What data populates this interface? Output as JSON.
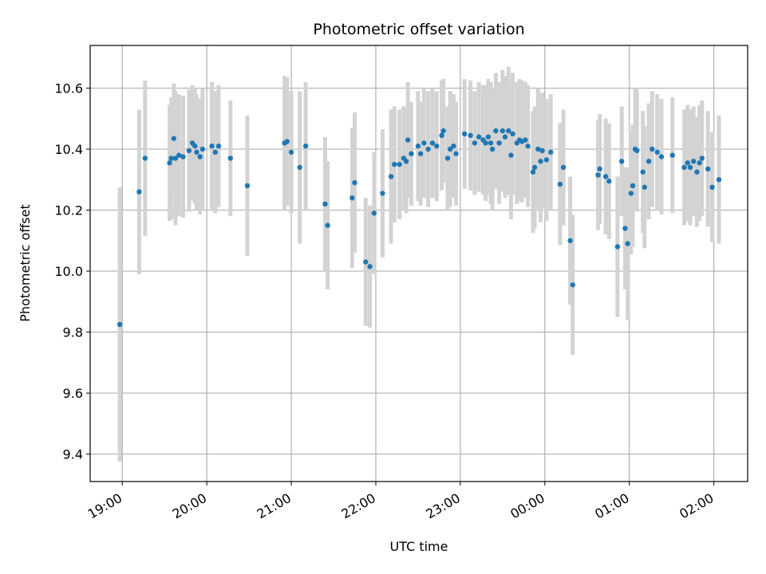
{
  "chart_data": {
    "type": "scatter",
    "title": "Photometric offset variation",
    "xlabel": "UTC time",
    "ylabel": "Photometric offset",
    "x_unit": "hours since 19:00 UTC",
    "xlim": [
      -0.38,
      7.4
    ],
    "ylim": [
      9.31,
      10.74
    ],
    "yticks": [
      9.4,
      9.6,
      9.8,
      10.0,
      10.2,
      10.4,
      10.6
    ],
    "xticks": [
      {
        "h": 0,
        "label": "19:00"
      },
      {
        "h": 1,
        "label": "20:00"
      },
      {
        "h": 2,
        "label": "21:00"
      },
      {
        "h": 3,
        "label": "22:00"
      },
      {
        "h": 4,
        "label": "23:00"
      },
      {
        "h": 5,
        "label": "00:00"
      },
      {
        "h": 6,
        "label": "01:00"
      },
      {
        "h": 7,
        "label": "02:00"
      }
    ],
    "grid": true,
    "colors": {
      "points": "#1f77b4",
      "errorbars": "#d3d3d3",
      "grid": "#b0b0b0"
    },
    "series": [
      {
        "points": [
          [
            -0.03,
            9.825,
            0.45
          ],
          [
            0.2,
            10.26,
            0.27
          ],
          [
            0.27,
            10.37,
            0.255
          ],
          [
            0.56,
            10.355,
            0.19
          ],
          [
            0.58,
            10.37,
            0.2
          ],
          [
            0.61,
            10.435,
            0.18
          ],
          [
            0.63,
            10.37,
            0.22
          ],
          [
            0.67,
            10.38,
            0.2
          ],
          [
            0.72,
            10.375,
            0.2
          ],
          [
            0.79,
            10.395,
            0.2
          ],
          [
            0.83,
            10.42,
            0.19
          ],
          [
            0.86,
            10.41,
            0.19
          ],
          [
            0.88,
            10.39,
            0.19
          ],
          [
            0.92,
            10.375,
            0.19
          ],
          [
            0.95,
            10.4,
            0.2
          ],
          [
            1.06,
            10.41,
            0.21
          ],
          [
            1.1,
            10.39,
            0.2
          ],
          [
            1.14,
            10.41,
            0.2
          ],
          [
            1.28,
            10.37,
            0.19
          ],
          [
            1.48,
            10.28,
            0.23
          ],
          [
            1.92,
            10.42,
            0.22
          ],
          [
            1.95,
            10.425,
            0.21
          ],
          [
            2.0,
            10.39,
            0.2
          ],
          [
            2.1,
            10.34,
            0.25
          ],
          [
            2.17,
            10.41,
            0.21
          ],
          [
            2.4,
            10.22,
            0.22
          ],
          [
            2.43,
            10.15,
            0.21
          ],
          [
            2.72,
            10.24,
            0.23
          ],
          [
            2.75,
            10.29,
            0.23
          ],
          [
            2.88,
            10.03,
            0.21
          ],
          [
            2.93,
            10.015,
            0.2
          ],
          [
            2.98,
            10.19,
            0.2
          ],
          [
            3.08,
            10.255,
            0.21
          ],
          [
            3.18,
            10.31,
            0.22
          ],
          [
            3.22,
            10.35,
            0.19
          ],
          [
            3.28,
            10.35,
            0.18
          ],
          [
            3.33,
            10.37,
            0.17
          ],
          [
            3.36,
            10.36,
            0.17
          ],
          [
            3.38,
            10.43,
            0.19
          ],
          [
            3.42,
            10.385,
            0.17
          ],
          [
            3.5,
            10.41,
            0.18
          ],
          [
            3.53,
            10.385,
            0.17
          ],
          [
            3.57,
            10.42,
            0.18
          ],
          [
            3.62,
            10.4,
            0.19
          ],
          [
            3.67,
            10.42,
            0.18
          ],
          [
            3.72,
            10.41,
            0.18
          ],
          [
            3.78,
            10.445,
            0.18
          ],
          [
            3.8,
            10.46,
            0.17
          ],
          [
            3.85,
            10.37,
            0.17
          ],
          [
            3.88,
            10.4,
            0.19
          ],
          [
            3.92,
            10.41,
            0.17
          ],
          [
            3.95,
            10.385,
            0.17
          ],
          [
            4.05,
            10.45,
            0.18
          ],
          [
            4.12,
            10.445,
            0.18
          ],
          [
            4.17,
            10.42,
            0.17
          ],
          [
            4.22,
            10.44,
            0.18
          ],
          [
            4.27,
            10.43,
            0.18
          ],
          [
            4.3,
            10.42,
            0.19
          ],
          [
            4.33,
            10.44,
            0.19
          ],
          [
            4.36,
            10.42,
            0.2
          ],
          [
            4.38,
            10.4,
            0.2
          ],
          [
            4.42,
            10.46,
            0.19
          ],
          [
            4.46,
            10.42,
            0.2
          ],
          [
            4.5,
            10.46,
            0.2
          ],
          [
            4.53,
            10.44,
            0.2
          ],
          [
            4.57,
            10.46,
            0.21
          ],
          [
            4.6,
            10.38,
            0.21
          ],
          [
            4.62,
            10.45,
            0.2
          ],
          [
            4.67,
            10.42,
            0.2
          ],
          [
            4.7,
            10.43,
            0.2
          ],
          [
            4.73,
            10.425,
            0.2
          ],
          [
            4.77,
            10.43,
            0.19
          ],
          [
            4.8,
            10.41,
            0.2
          ],
          [
            4.86,
            10.325,
            0.2
          ],
          [
            4.88,
            10.34,
            0.2
          ],
          [
            4.92,
            10.4,
            0.2
          ],
          [
            4.95,
            10.36,
            0.2
          ],
          [
            4.97,
            10.395,
            0.19
          ],
          [
            5.02,
            10.365,
            0.2
          ],
          [
            5.07,
            10.39,
            0.19
          ],
          [
            5.18,
            10.285,
            0.2
          ],
          [
            5.22,
            10.34,
            0.19
          ],
          [
            5.3,
            10.1,
            0.21
          ],
          [
            5.33,
            9.955,
            0.23
          ],
          [
            5.63,
            10.315,
            0.18
          ],
          [
            5.65,
            10.335,
            0.18
          ],
          [
            5.72,
            10.31,
            0.19
          ],
          [
            5.76,
            10.295,
            0.19
          ],
          [
            5.86,
            10.08,
            0.23
          ],
          [
            5.91,
            10.36,
            0.18
          ],
          [
            5.95,
            10.14,
            0.2
          ],
          [
            5.98,
            10.09,
            0.25
          ],
          [
            6.02,
            10.255,
            0.2
          ],
          [
            6.04,
            10.28,
            0.2
          ],
          [
            6.07,
            10.4,
            0.2
          ],
          [
            6.09,
            10.395,
            0.2
          ],
          [
            6.16,
            10.325,
            0.2
          ],
          [
            6.18,
            10.275,
            0.2
          ],
          [
            6.23,
            10.36,
            0.19
          ],
          [
            6.27,
            10.4,
            0.19
          ],
          [
            6.33,
            10.39,
            0.19
          ],
          [
            6.38,
            10.375,
            0.19
          ],
          [
            6.51,
            10.38,
            0.19
          ],
          [
            6.65,
            10.34,
            0.19
          ],
          [
            6.69,
            10.355,
            0.19
          ],
          [
            6.72,
            10.34,
            0.19
          ],
          [
            6.76,
            10.36,
            0.18
          ],
          [
            6.8,
            10.325,
            0.18
          ],
          [
            6.83,
            10.355,
            0.19
          ],
          [
            6.86,
            10.37,
            0.19
          ],
          [
            6.93,
            10.335,
            0.19
          ],
          [
            6.98,
            10.275,
            0.18
          ],
          [
            7.06,
            10.3,
            0.21
          ]
        ]
      }
    ]
  }
}
